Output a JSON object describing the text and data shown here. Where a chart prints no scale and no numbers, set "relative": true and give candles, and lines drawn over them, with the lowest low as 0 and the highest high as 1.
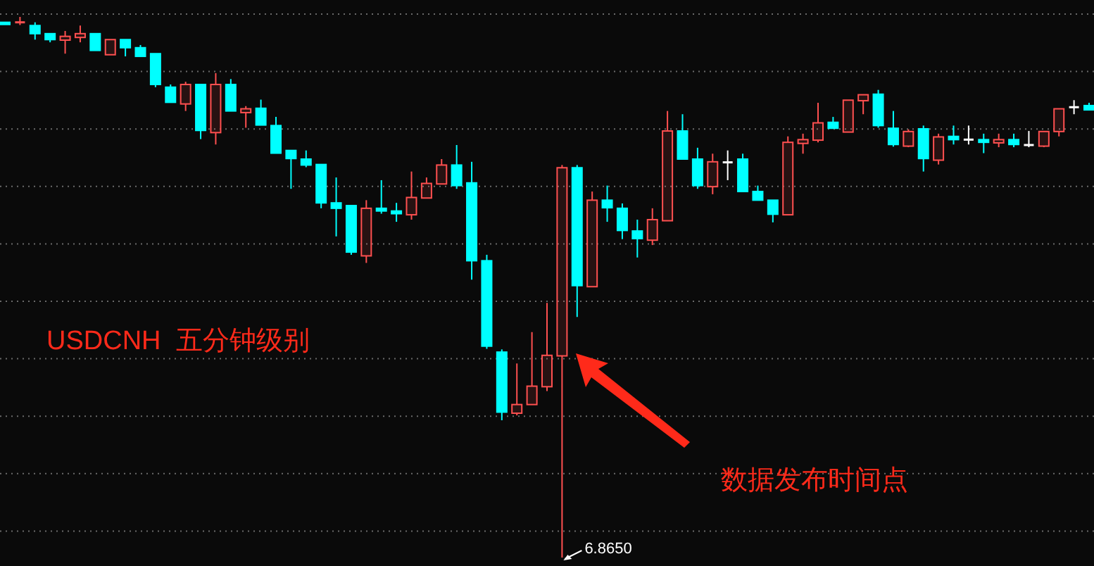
{
  "chart_data": {
    "type": "candlestick",
    "relative": true,
    "grid": true,
    "categories": [
      null,
      null,
      null,
      null,
      null,
      null,
      null,
      null,
      null,
      null,
      null,
      null,
      null,
      null,
      null,
      null,
      null,
      null,
      null,
      null,
      null,
      null,
      null,
      null,
      null,
      null,
      null,
      null,
      null,
      null,
      null,
      null,
      null,
      null,
      null,
      null,
      null,
      null,
      null,
      null,
      null,
      null,
      null,
      null,
      null,
      null,
      null,
      null,
      null,
      null,
      null,
      null,
      null,
      null,
      null,
      null,
      null,
      null,
      null,
      null,
      null,
      null,
      null,
      null,
      null,
      null,
      null,
      null,
      null,
      null,
      null,
      null,
      null
    ],
    "ohlc": [
      [
        0.99,
        0.99,
        0.986,
        0.986
      ],
      [
        0.989,
        1,
        0.985,
        0.99
      ],
      [
        0.984,
        0.99,
        0.958,
        0.969
      ],
      [
        0.969,
        0.969,
        0.953,
        0.958
      ],
      [
        0.957,
        0.974,
        0.932,
        0.964
      ],
      [
        0.962,
        0.984,
        0.953,
        0.969
      ],
      [
        0.969,
        0.969,
        0.938,
        0.938
      ],
      [
        0.93,
        0.958,
        0.93,
        0.958
      ],
      [
        0.958,
        0.958,
        0.927,
        0.943
      ],
      [
        0.943,
        0.948,
        0.927,
        0.927
      ],
      [
        0.932,
        0.932,
        0.87,
        0.875
      ],
      [
        0.87,
        0.875,
        0.842,
        0.842
      ],
      [
        0.839,
        0.88,
        0.826,
        0.875
      ],
      [
        0.875,
        0.875,
        0.774,
        0.79
      ],
      [
        0.786,
        0.896,
        0.764,
        0.875
      ],
      [
        0.875,
        0.885,
        0.826,
        0.826
      ],
      [
        0.823,
        0.835,
        0.795,
        0.83
      ],
      [
        0.831,
        0.847,
        0.8,
        0.8
      ],
      [
        0.799,
        0.815,
        0.748,
        0.748
      ],
      [
        0.753,
        0.753,
        0.682,
        0.738
      ],
      [
        0.737,
        0.753,
        0.722,
        0.726
      ],
      [
        0.727,
        0.727,
        0.646,
        0.656
      ],
      [
        0.656,
        0.703,
        0.594,
        0.646
      ],
      [
        0.651,
        0.651,
        0.56,
        0.565
      ],
      [
        0.558,
        0.661,
        0.545,
        0.646
      ],
      [
        0.646,
        0.698,
        0.636,
        0.641
      ],
      [
        0.641,
        0.656,
        0.621,
        0.636
      ],
      [
        0.634,
        0.714,
        0.625,
        0.666
      ],
      [
        0.665,
        0.703,
        0.665,
        0.692
      ],
      [
        0.691,
        0.737,
        0.691,
        0.726
      ],
      [
        0.726,
        0.763,
        0.682,
        0.688
      ],
      [
        0.693,
        0.732,
        0.514,
        0.549
      ],
      [
        0.549,
        0.56,
        0.386,
        0.391
      ],
      [
        0.38,
        0.385,
        0.254,
        0.269
      ],
      [
        0.267,
        0.359,
        0.263,
        0.283
      ],
      [
        0.283,
        0.417,
        0.283,
        0.317
      ],
      [
        0.316,
        0.471,
        0.308,
        0.374
      ],
      [
        0.373,
        0.726,
        0,
        0.721
      ],
      [
        0.721,
        0.726,
        0.445,
        0.503
      ],
      [
        0.501,
        0.677,
        0.501,
        0.661
      ],
      [
        0.661,
        0.688,
        0.621,
        0.647
      ],
      [
        0.646,
        0.655,
        0.589,
        0.605
      ],
      [
        0.604,
        0.625,
        0.555,
        0.59
      ],
      [
        0.587,
        0.646,
        0.578,
        0.625
      ],
      [
        0.623,
        0.826,
        0.623,
        0.789
      ],
      [
        0.789,
        0.82,
        0.737,
        0.737
      ],
      [
        0.737,
        0.758,
        0.682,
        0.688
      ],
      [
        0.686,
        0.747,
        0.672,
        0.732
      ],
      [
        0.731,
        0.753,
        0.698,
        0.731
      ],
      [
        0.737,
        0.747,
        0.677,
        0.677
      ],
      [
        0.677,
        0.688,
        0.661,
        0.661
      ],
      [
        0.661,
        0.661,
        0.62,
        0.635
      ],
      [
        0.634,
        0.779,
        0.634,
        0.768
      ],
      [
        0.766,
        0.784,
        0.747,
        0.773
      ],
      [
        0.772,
        0.841,
        0.768,
        0.804
      ],
      [
        0.805,
        0.815,
        0.794,
        0.794
      ],
      [
        0.787,
        0.846,
        0.787,
        0.846
      ],
      [
        0.845,
        0.856,
        0.82,
        0.856
      ],
      [
        0.857,
        0.865,
        0.795,
        0.799
      ],
      [
        0.794,
        0.826,
        0.76,
        0.764
      ],
      [
        0.761,
        0.792,
        0.759,
        0.788
      ],
      [
        0.793,
        0.799,
        0.714,
        0.738
      ],
      [
        0.735,
        0.784,
        0.727,
        0.778
      ],
      [
        0.779,
        0.799,
        0.764,
        0.773
      ],
      [
        0.773,
        0.799,
        0.764,
        0.773
      ],
      [
        0.773,
        0.784,
        0.748,
        0.768
      ],
      [
        0.767,
        0.784,
        0.759,
        0.773
      ],
      [
        0.773,
        0.784,
        0.759,
        0.764
      ],
      [
        0.763,
        0.789,
        0.759,
        0.763
      ],
      [
        0.761,
        0.788,
        0.759,
        0.788
      ],
      [
        0.788,
        0.83,
        0.779,
        0.83
      ],
      [
        0.833,
        0.846,
        0.82,
        0.833
      ],
      [
        0.836,
        0.841,
        0.828,
        0.828
      ]
    ],
    "colors": [
      "#00ffff",
      "#ff5050",
      "#00ffff",
      "#00ffff",
      "#ff5050",
      "#ff5050",
      "#00ffff",
      "#ff5050",
      "#00ffff",
      "#00ffff",
      "#00ffff",
      "#00ffff",
      "#ff5050",
      "#00ffff",
      "#ff5050",
      "#00ffff",
      "#ff5050",
      "#00ffff",
      "#00ffff",
      "#00ffff",
      "#00ffff",
      "#00ffff",
      "#00ffff",
      "#00ffff",
      "#ff5050",
      "#00ffff",
      "#00ffff",
      "#ff5050",
      "#ff5050",
      "#ff5050",
      "#00ffff",
      "#00ffff",
      "#00ffff",
      "#00ffff",
      "#ff5050",
      "#ff5050",
      "#ff5050",
      "#ff5050",
      "#00ffff",
      "#ff5050",
      "#00ffff",
      "#00ffff",
      "#00ffff",
      "#ff5050",
      "#ff5050",
      "#00ffff",
      "#00ffff",
      "#ff5050",
      "#ffffff",
      "#00ffff",
      "#00ffff",
      "#00ffff",
      "#ff5050",
      "#ff5050",
      "#ff5050",
      "#00ffff",
      "#ff5050",
      "#ff5050",
      "#00ffff",
      "#00ffff",
      "#ff5050",
      "#00ffff",
      "#ff5050",
      "#00ffff",
      "#ffffff",
      "#00ffff",
      "#ff5050",
      "#00ffff",
      "#ffffff",
      "#ff5050",
      "#ff5050",
      "#ffffff",
      "#00ffff"
    ],
    "annotations": [
      "USDCNH  五分钟级别",
      "数据发布时间点",
      "6.8650"
    ]
  }
}
